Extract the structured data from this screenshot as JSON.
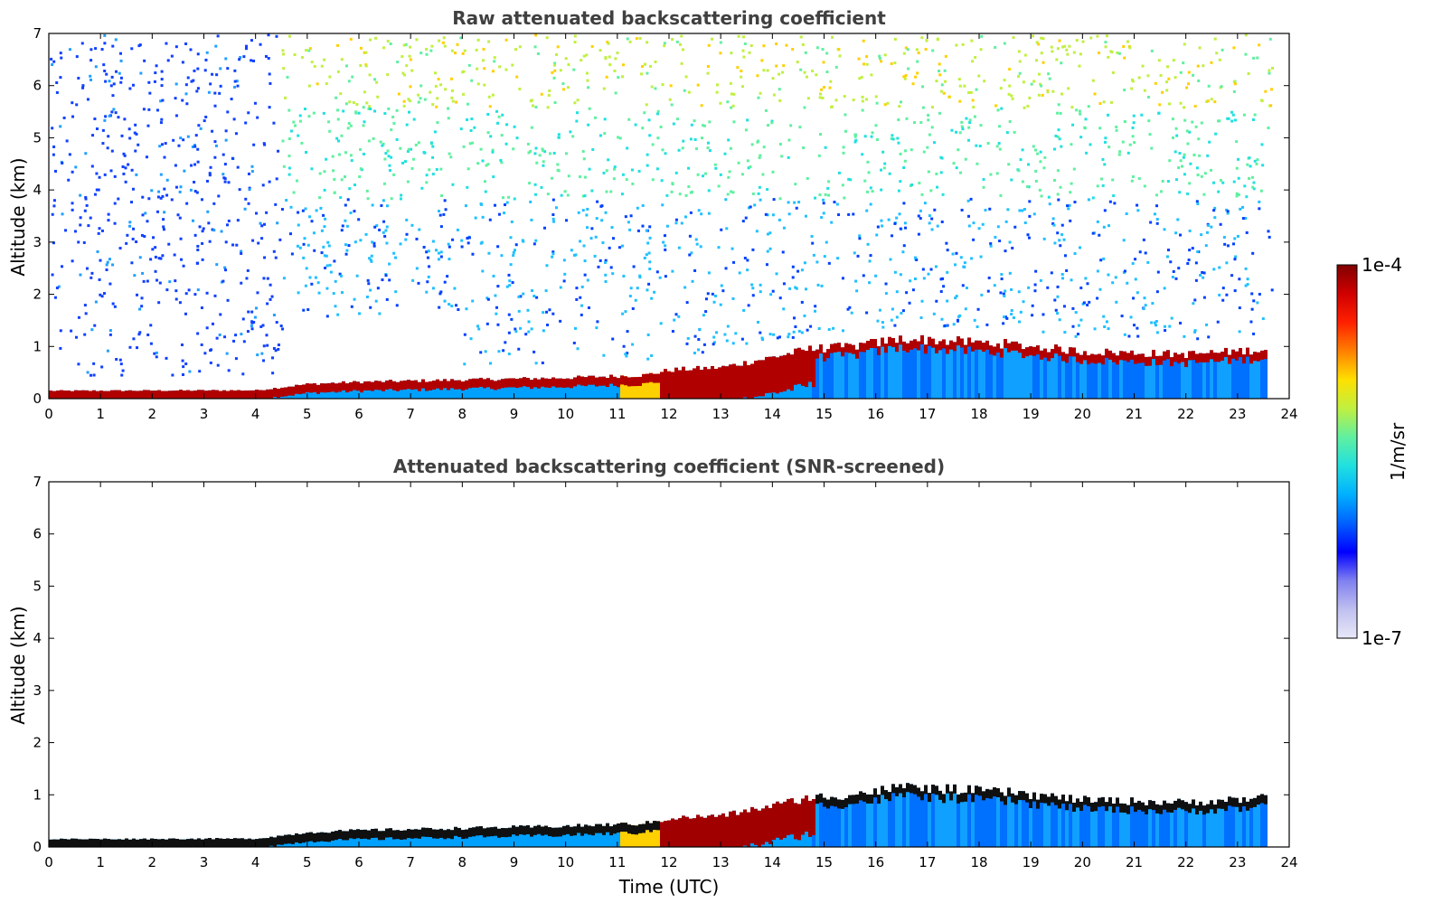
{
  "chart_data": [
    {
      "type": "heatmap",
      "title": "Raw attenuated backscattering coefficient",
      "xlabel": "",
      "ylabel": "Altitude (km)",
      "xlim": [
        0,
        24
      ],
      "ylim": [
        0,
        7
      ],
      "xticks": [
        "0",
        "1",
        "2",
        "3",
        "4",
        "5",
        "6",
        "7",
        "8",
        "9",
        "10",
        "11",
        "12",
        "13",
        "14",
        "15",
        "16",
        "17",
        "18",
        "19",
        "20",
        "21",
        "22",
        "23",
        "24"
      ],
      "yticks": [
        "0",
        "1",
        "2",
        "3",
        "4",
        "5",
        "6",
        "7"
      ],
      "data_end_time": 23.65,
      "boundary_layer_top_km": {
        "time": [
          0,
          4,
          5,
          6,
          8,
          10,
          11.5,
          12,
          13,
          14,
          14.7,
          15.5,
          16.5,
          17.5,
          18.5,
          20,
          22,
          23.6
        ],
        "height": [
          0.15,
          0.16,
          0.28,
          0.32,
          0.36,
          0.4,
          0.45,
          0.55,
          0.6,
          0.8,
          0.95,
          1.0,
          1.15,
          1.1,
          1.05,
          0.9,
          0.85,
          0.95
        ]
      },
      "noise": "high altitude signal dominated by noise"
    },
    {
      "type": "heatmap",
      "title": "Attenuated backscattering coefficient (SNR-screened)",
      "xlabel": "Time (UTC)",
      "ylabel": "Altitude (km)",
      "xlim": [
        0,
        24
      ],
      "ylim": [
        0,
        7
      ],
      "xticks": [
        "0",
        "1",
        "2",
        "3",
        "4",
        "5",
        "6",
        "7",
        "8",
        "9",
        "10",
        "11",
        "12",
        "13",
        "14",
        "15",
        "16",
        "17",
        "18",
        "19",
        "20",
        "21",
        "22",
        "23",
        "24"
      ],
      "yticks": [
        "0",
        "1",
        "2",
        "3",
        "4",
        "5",
        "6",
        "7"
      ],
      "data_end_time": 23.65,
      "screening": "SNR-screened"
    }
  ],
  "colorbar": {
    "label": "1/m/sr",
    "max_label": "1e-4",
    "min_label": "1e-7",
    "scale": "log",
    "colormap": [
      "#e8e8f8",
      "#c0c0f0",
      "#8080f0",
      "#0000ff",
      "#0060ff",
      "#00b0ff",
      "#20e0e0",
      "#60f0a0",
      "#c0f040",
      "#ffe000",
      "#ff8000",
      "#ff2000",
      "#d00000",
      "#800000"
    ]
  }
}
